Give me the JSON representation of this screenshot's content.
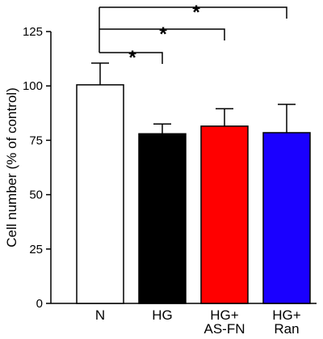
{
  "chart_data": {
    "type": "bar",
    "ylabel": "Cell number (% of control)",
    "ylim": [
      0,
      125
    ],
    "yticks": [
      "0",
      "25",
      "50",
      "75",
      "100",
      "125"
    ],
    "categories": [
      {
        "lines": [
          "N"
        ]
      },
      {
        "lines": [
          "HG"
        ]
      },
      {
        "lines": [
          "HG+",
          "AS-FN"
        ]
      },
      {
        "lines": [
          "HG+",
          "Ran"
        ]
      }
    ],
    "values": [
      100.5,
      78,
      81.5,
      78.5
    ],
    "errors": [
      10,
      4.5,
      8,
      13
    ],
    "colors": [
      "#ffffff",
      "#000000",
      "#ff0000",
      "#1a00ff"
    ],
    "significance": [
      {
        "from": 0,
        "to": 1,
        "label": "*"
      },
      {
        "from": 0,
        "to": 2,
        "label": "*"
      },
      {
        "from": 0,
        "to": 3,
        "label": "*"
      }
    ],
    "grid": false,
    "legend": "none"
  }
}
